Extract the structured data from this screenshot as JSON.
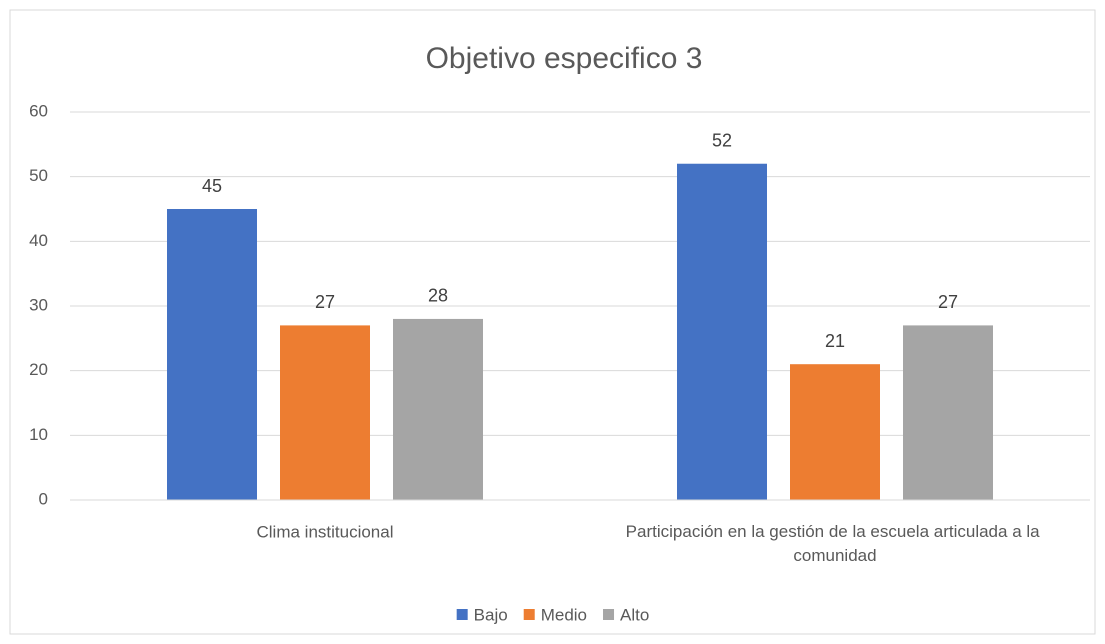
{
  "chart_data": {
    "type": "bar",
    "title": "Objetivo especifico 3",
    "categories": [
      "Clima institucional",
      "Participación en la gestión de la escuela articulada a la comunidad"
    ],
    "series": [
      {
        "name": "Bajo",
        "color": "#4472c4",
        "values": [
          45,
          52
        ]
      },
      {
        "name": "Medio",
        "color": "#ed7d31",
        "values": [
          27,
          21
        ]
      },
      {
        "name": "Alto",
        "color": "#a5a5a5",
        "values": [
          28,
          27
        ]
      }
    ],
    "ylim": [
      0,
      60
    ],
    "yticks": [
      0,
      10,
      20,
      30,
      40,
      50,
      60
    ],
    "grid": true,
    "legend": "bottom"
  }
}
